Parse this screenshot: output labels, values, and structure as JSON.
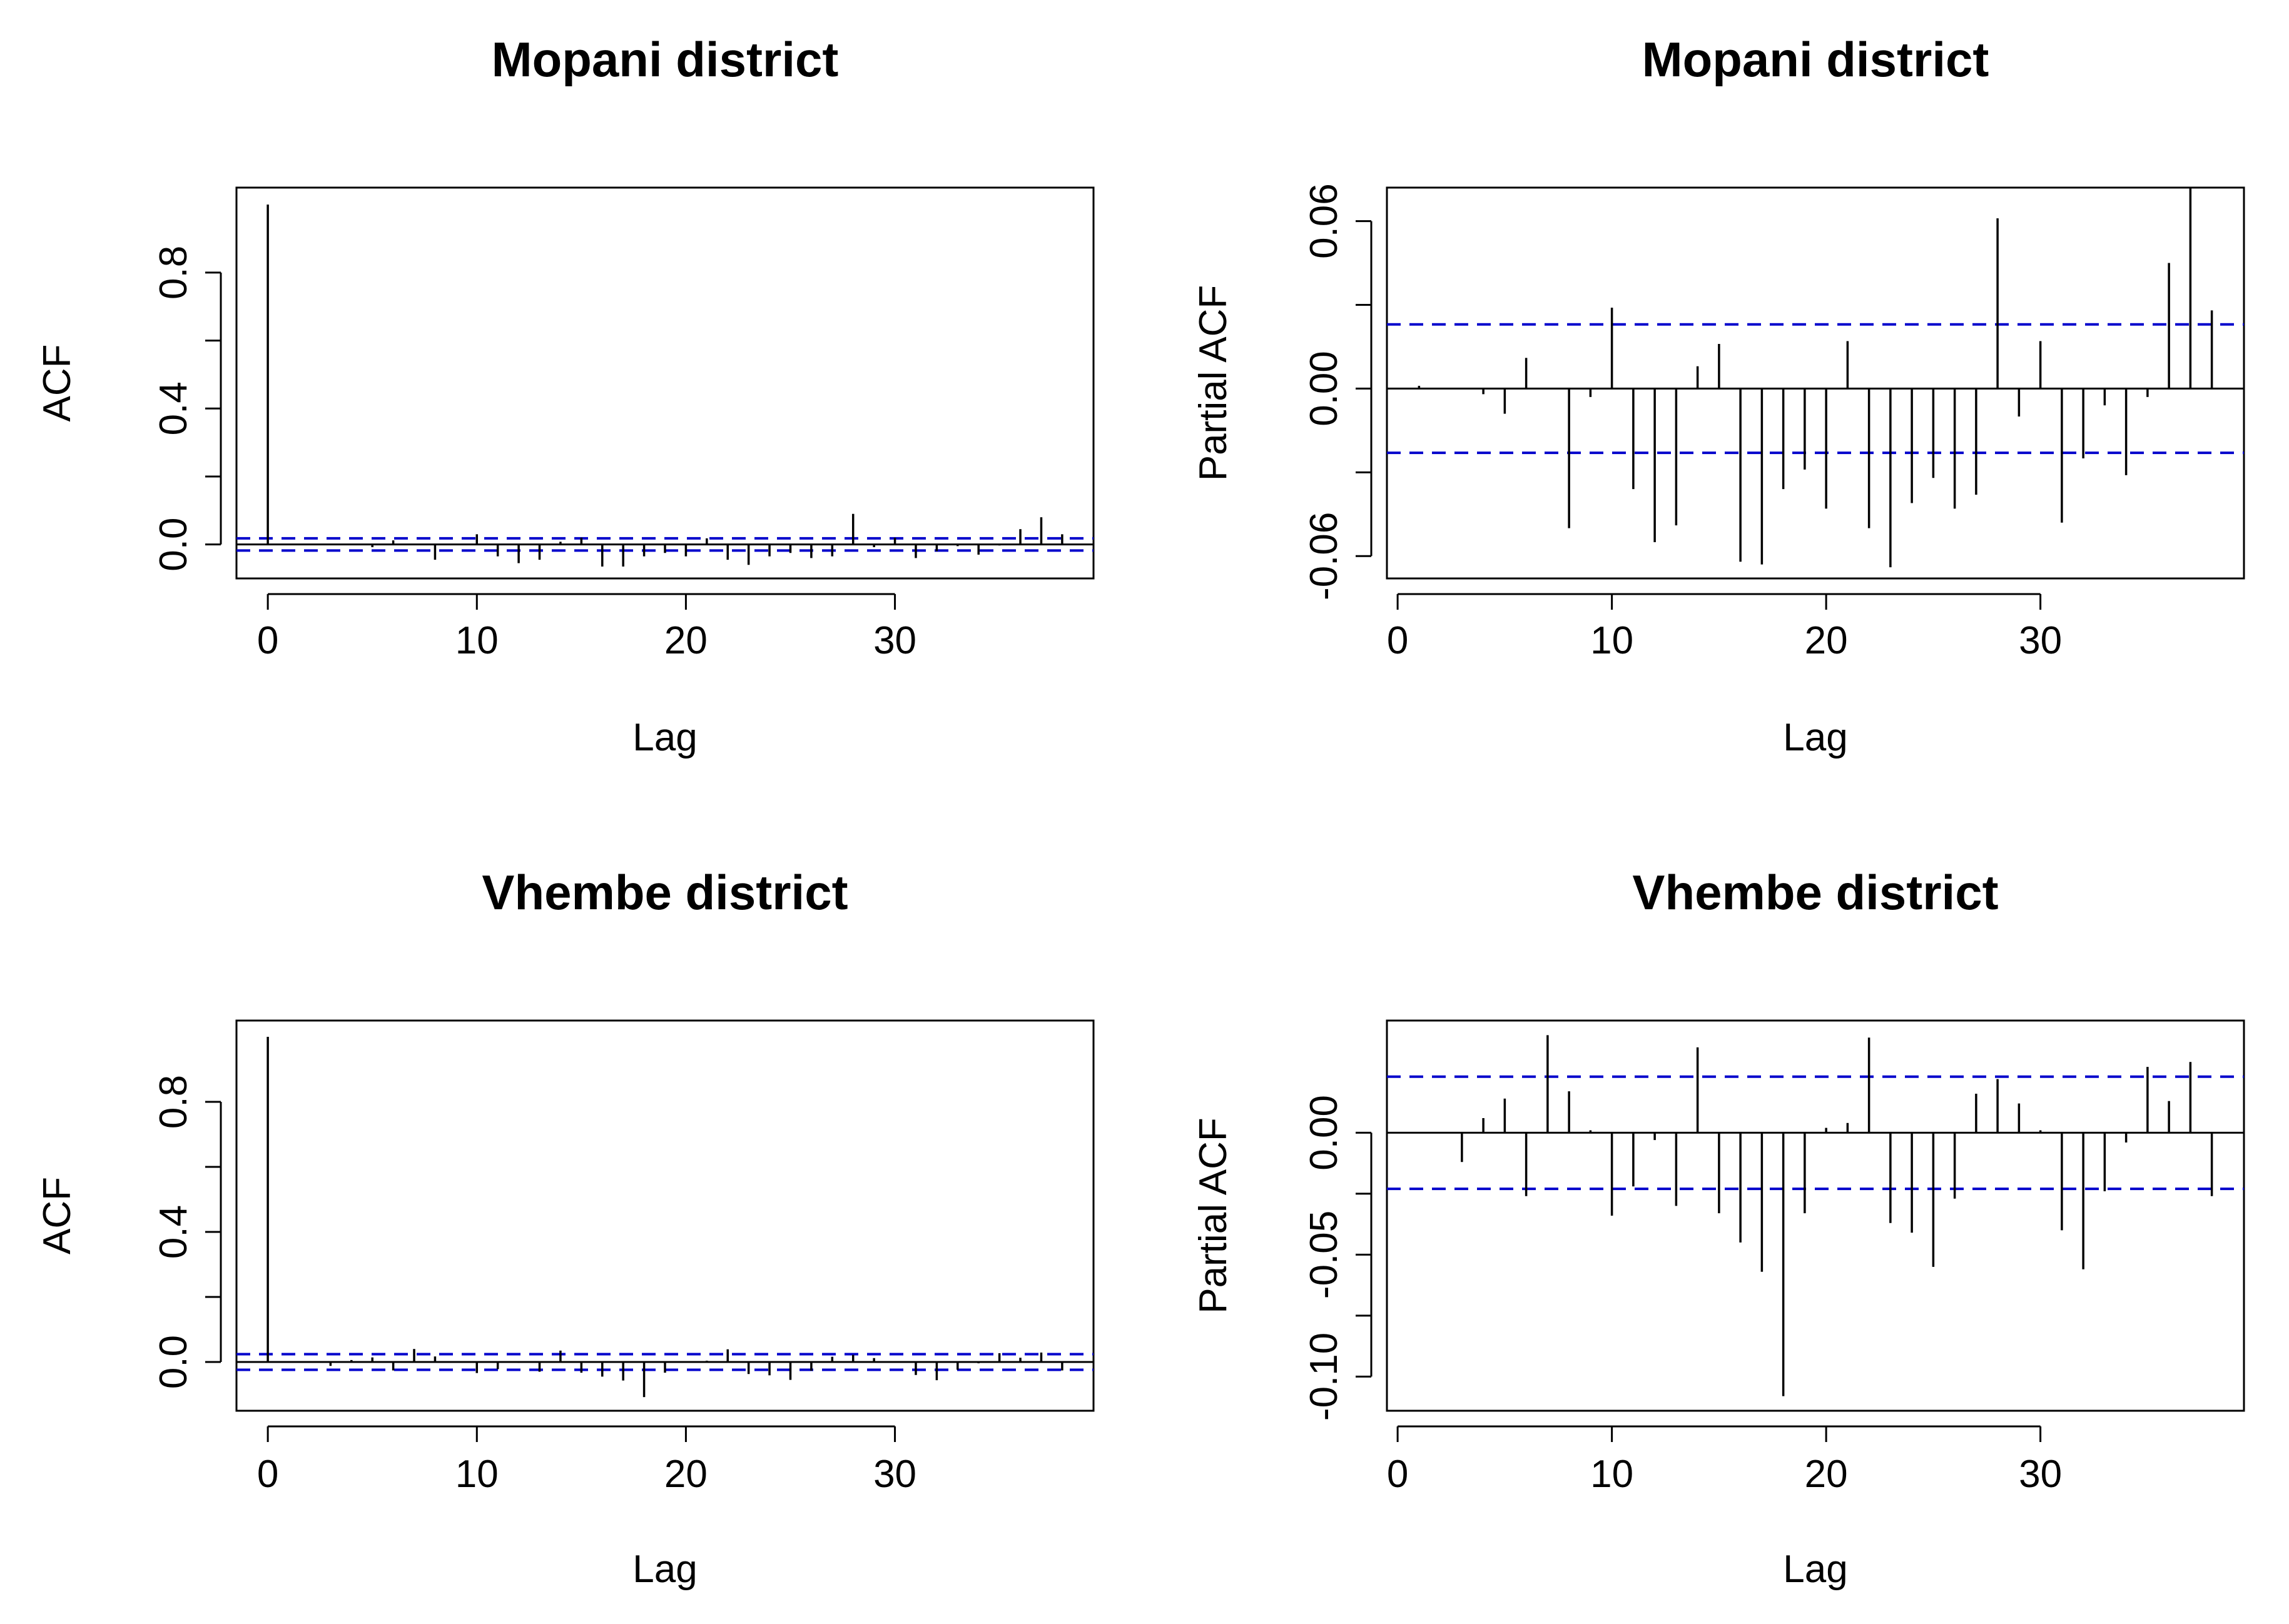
{
  "chart_data": [
    {
      "type": "bar",
      "title": "Mopani district",
      "xlabel": "Lag",
      "ylabel": "ACF",
      "xlim": [
        -1.5,
        39.5
      ],
      "ylim": [
        -0.1,
        1.05
      ],
      "xticks": [
        0,
        10,
        20,
        30
      ],
      "yticks": [
        0.0,
        0.4,
        0.8
      ],
      "ytick_labels": [
        "0.0",
        "0.4",
        "0.8"
      ],
      "ci": 0.018,
      "lags": [
        0,
        1,
        2,
        3,
        4,
        5,
        6,
        7,
        8,
        9,
        10,
        11,
        12,
        13,
        14,
        15,
        16,
        17,
        18,
        19,
        20,
        21,
        22,
        23,
        24,
        25,
        26,
        27,
        28,
        29,
        30,
        31,
        32,
        33,
        34,
        35,
        36,
        37,
        38
      ],
      "values": [
        1.0,
        0.001,
        0.0,
        0.0,
        -0.002,
        -0.008,
        0.012,
        0.0,
        -0.045,
        -0.002,
        0.03,
        -0.035,
        -0.055,
        -0.045,
        0.008,
        0.02,
        -0.065,
        -0.065,
        -0.035,
        -0.025,
        -0.035,
        0.018,
        -0.045,
        -0.06,
        -0.035,
        -0.025,
        -0.04,
        -0.035,
        0.09,
        -0.008,
        0.02,
        -0.04,
        -0.02,
        -0.005,
        -0.03,
        -0.003,
        0.045,
        0.08,
        0.03
      ]
    },
    {
      "type": "bar",
      "title": "Mopani district",
      "xlabel": "Lag",
      "ylabel": "Partial ACF",
      "xlim": [
        -0.5,
        39.5
      ],
      "ylim": [
        -0.068,
        0.072
      ],
      "xticks": [
        0,
        10,
        20,
        30
      ],
      "yticks": [
        -0.06,
        0.0,
        0.06
      ],
      "ytick_labels": [
        "-0.06",
        "0.00",
        "0.06"
      ],
      "ci": 0.023,
      "lags": [
        1,
        2,
        3,
        4,
        5,
        6,
        7,
        8,
        9,
        10,
        11,
        12,
        13,
        14,
        15,
        16,
        17,
        18,
        19,
        20,
        21,
        22,
        23,
        24,
        25,
        26,
        27,
        28,
        29,
        30,
        31,
        32,
        33,
        34,
        35,
        36,
        37,
        38
      ],
      "values": [
        0.001,
        0.0,
        0.0,
        -0.002,
        -0.009,
        0.011,
        0.0,
        -0.05,
        -0.003,
        0.029,
        -0.036,
        -0.055,
        -0.049,
        0.008,
        0.016,
        -0.062,
        -0.063,
        -0.036,
        -0.029,
        -0.043,
        0.017,
        -0.05,
        -0.064,
        -0.041,
        -0.032,
        -0.043,
        -0.038,
        0.061,
        -0.01,
        0.017,
        -0.048,
        -0.025,
        -0.006,
        -0.031,
        -0.003,
        0.045,
        0.072,
        0.028
      ]
    },
    {
      "type": "bar",
      "title": "Vhembe district",
      "xlabel": "Lag",
      "ylabel": "ACF",
      "xlim": [
        -1.5,
        39.5
      ],
      "ylim": [
        -0.15,
        1.05
      ],
      "xticks": [
        0,
        10,
        20,
        30
      ],
      "yticks": [
        0.0,
        0.4,
        0.8
      ],
      "ytick_labels": [
        "0.0",
        "0.4",
        "0.8"
      ],
      "ci": 0.024,
      "lags": [
        0,
        1,
        2,
        3,
        4,
        5,
        6,
        7,
        8,
        9,
        10,
        11,
        12,
        13,
        14,
        15,
        16,
        17,
        18,
        19,
        20,
        21,
        22,
        23,
        24,
        25,
        26,
        27,
        28,
        29,
        30,
        31,
        32,
        33,
        34,
        35,
        36,
        37,
        38
      ],
      "values": [
        1.0,
        0.0,
        0.0,
        -0.012,
        0.006,
        0.014,
        -0.026,
        0.04,
        0.017,
        0.001,
        -0.034,
        -0.022,
        -0.003,
        -0.03,
        0.035,
        -0.033,
        -0.045,
        -0.057,
        -0.108,
        -0.033,
        0.002,
        0.004,
        0.039,
        -0.037,
        -0.041,
        -0.055,
        -0.027,
        0.016,
        0.022,
        0.012,
        0.001,
        -0.04,
        -0.056,
        -0.024,
        -0.004,
        0.027,
        0.013,
        0.029,
        -0.026
      ]
    },
    {
      "type": "bar",
      "title": "Vhembe district",
      "xlabel": "Lag",
      "ylabel": "Partial ACF",
      "xlim": [
        -0.5,
        39.5
      ],
      "ylim": [
        -0.114,
        0.046
      ],
      "xticks": [
        0,
        10,
        20,
        30
      ],
      "yticks": [
        -0.1,
        -0.05,
        0.0
      ],
      "ytick_labels": [
        "-0.10",
        "-0.05",
        "0.00"
      ],
      "ci": 0.023,
      "lags": [
        1,
        2,
        3,
        4,
        5,
        6,
        7,
        8,
        9,
        10,
        11,
        12,
        13,
        14,
        15,
        16,
        17,
        18,
        19,
        20,
        21,
        22,
        23,
        24,
        25,
        26,
        27,
        28,
        29,
        30,
        31,
        32,
        33,
        34,
        35,
        36,
        37,
        38
      ],
      "values": [
        0.0,
        0.0,
        -0.012,
        0.006,
        0.014,
        -0.026,
        0.04,
        0.017,
        0.001,
        -0.034,
        -0.022,
        -0.003,
        -0.03,
        0.035,
        -0.033,
        -0.045,
        -0.057,
        -0.108,
        -0.033,
        0.002,
        0.004,
        0.039,
        -0.037,
        -0.041,
        -0.055,
        -0.027,
        0.016,
        0.022,
        0.012,
        0.001,
        -0.04,
        -0.056,
        -0.024,
        -0.004,
        0.027,
        0.013,
        0.029,
        -0.026
      ]
    }
  ],
  "colors": {
    "ci_line": "#0000cc",
    "bar": "#000000",
    "zero_line": "#000000"
  }
}
